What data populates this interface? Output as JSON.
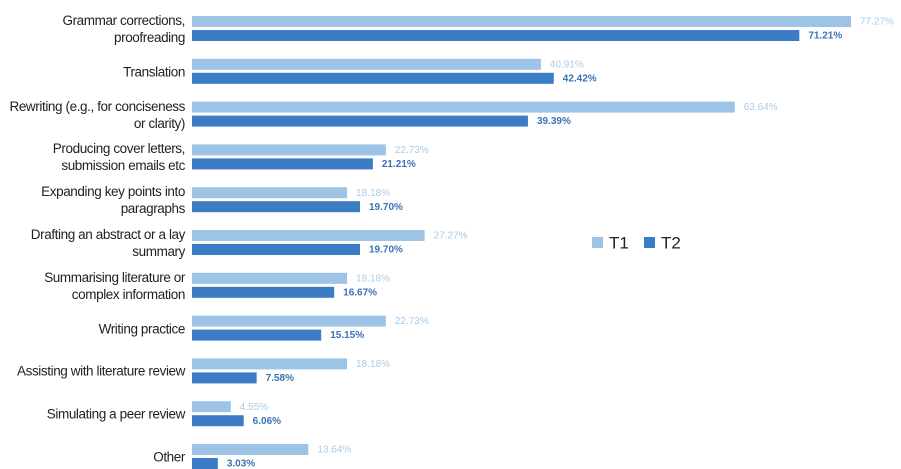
{
  "chart_data": {
    "type": "hbar",
    "categories": [
      "Grammar corrections, proofreading",
      "Translation",
      "Rewriting (e.g., for conciseness or clarity)",
      "Producing cover letters, submission emails etc",
      "Expanding key points into paragraphs",
      "Drafting an abstract or a lay summary",
      "Summarising literature or complex information",
      "Writing practice",
      "Assisting with literature review",
      "Simulating a peer review",
      "Other"
    ],
    "series": [
      {
        "name": "T1",
        "color": "#9dc3e6",
        "values": [
          77.27,
          40.91,
          63.64,
          22.73,
          18.18,
          27.27,
          18.18,
          22.73,
          18.18,
          4.55,
          13.64
        ],
        "value_labels": [
          "77.27%",
          "40.91%",
          "63.64%",
          "22.73%",
          "18.18%",
          "27.27%",
          "18.18%",
          "22.73%",
          "18.18%",
          "4.55%",
          "13.64%"
        ]
      },
      {
        "name": "T2",
        "color": "#3b7cc4",
        "values": [
          71.21,
          42.42,
          39.39,
          21.21,
          19.7,
          19.7,
          16.67,
          15.15,
          7.58,
          6.06,
          3.03
        ],
        "value_labels": [
          "71.21%",
          "42.42%",
          "39.39%",
          "21.21%",
          "19.70%",
          "19.70%",
          "16.67%",
          "15.15%",
          "7.58%",
          "6.06%",
          "3.03%"
        ]
      }
    ],
    "legend": "right"
  }
}
